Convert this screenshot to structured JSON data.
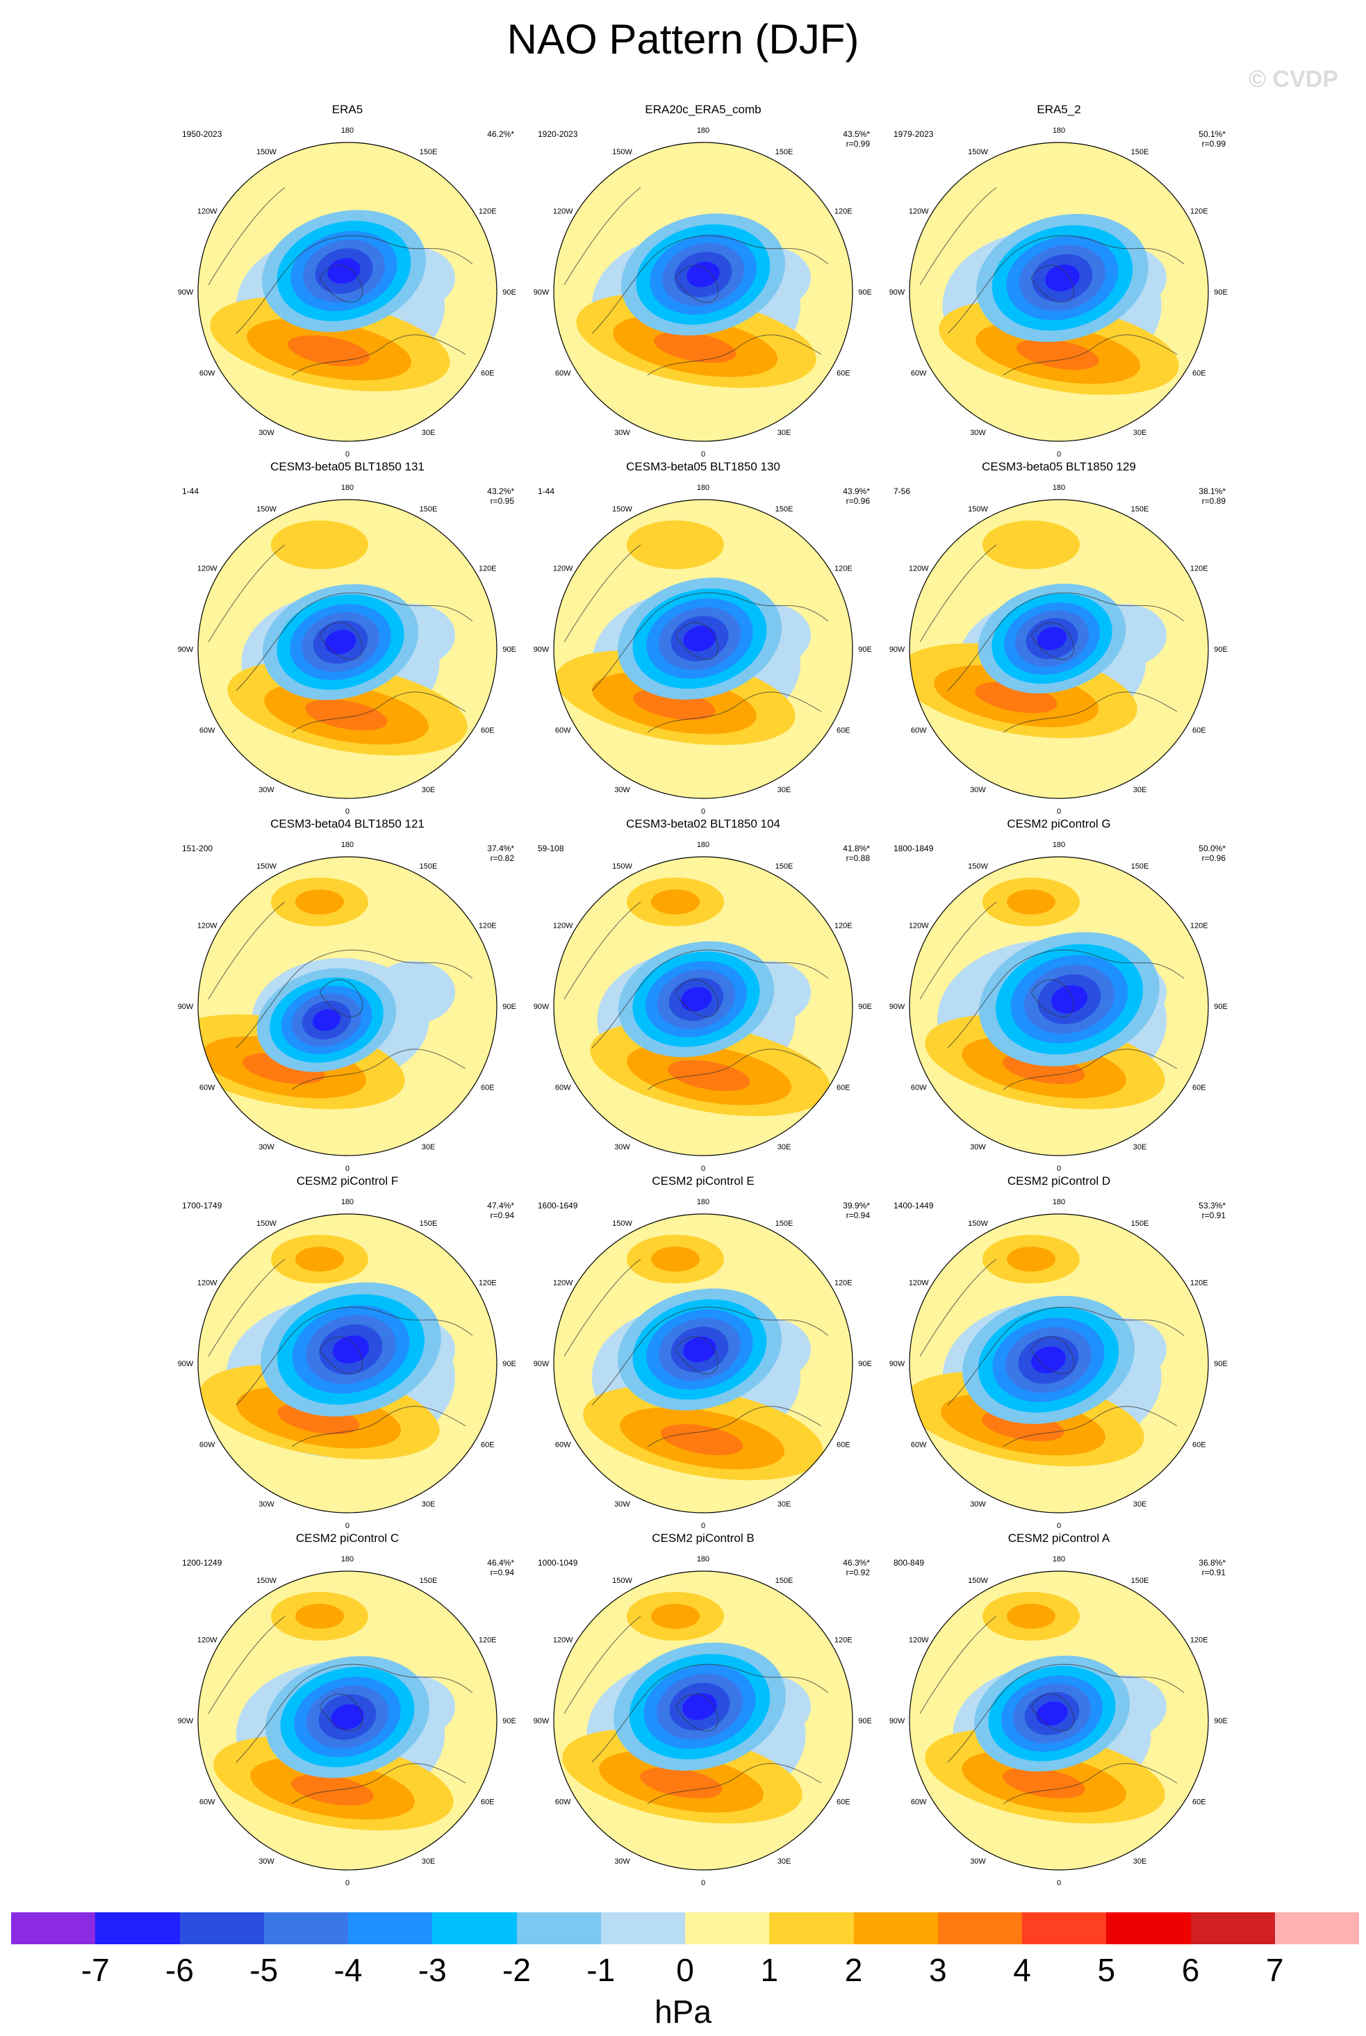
{
  "title": "NAO Pattern (DJF)",
  "watermark": "© CVDP",
  "lon_labels": [
    "180",
    "150E",
    "120E",
    "90E",
    "60E",
    "30E",
    "0",
    "30W",
    "60W",
    "90W",
    "120W",
    "150W"
  ],
  "colorbar": {
    "colors": [
      "#8a2be2",
      "#2020ff",
      "#2a4fe0",
      "#3a78e8",
      "#1e90ff",
      "#00bfff",
      "#7cc8f0",
      "#b8dcf4",
      "#fff59d",
      "#ffd230",
      "#ffa500",
      "#ff7a10",
      "#ff4020",
      "#ee0000",
      "#d02020",
      "#ffb0b0"
    ],
    "labels": [
      "-7",
      "-6",
      "-5",
      "-4",
      "-3",
      "-2",
      "-1",
      "0",
      "1",
      "2",
      "3",
      "4",
      "5",
      "6",
      "7"
    ],
    "units": "hPa"
  },
  "panels": [
    {
      "title": "ERA5",
      "range": "1950-2023",
      "pct": "46.2%*",
      "r": ""
    },
    {
      "title": "ERA20c_ERA5_comb",
      "range": "1920-2023",
      "pct": "43.5%*",
      "r": "r=0.99"
    },
    {
      "title": "ERA5_2",
      "range": "1979-2023",
      "pct": "50.1%*",
      "r": "r=0.99"
    },
    {
      "title": "CESM3-beta05 BLT1850 131",
      "range": "1-44",
      "pct": "43.2%*",
      "r": "r=0.95"
    },
    {
      "title": "CESM3-beta05 BLT1850 130",
      "range": "1-44",
      "pct": "43.9%*",
      "r": "r=0.96"
    },
    {
      "title": "CESM3-beta05 BLT1850 129",
      "range": "7-56",
      "pct": "38.1%*",
      "r": "r=0.89"
    },
    {
      "title": "CESM3-beta04 BLT1850 121",
      "range": "151-200",
      "pct": "37.4%*",
      "r": "r=0.82"
    },
    {
      "title": "CESM3-beta02 BLT1850 104",
      "range": "59-108",
      "pct": "41.8%*",
      "r": "r=0.88"
    },
    {
      "title": "CESM2 piControl G",
      "range": "1800-1849",
      "pct": "50.0%*",
      "r": "r=0.96"
    },
    {
      "title": "CESM2 piControl F",
      "range": "1700-1749",
      "pct": "47.4%*",
      "r": "r=0.94"
    },
    {
      "title": "CESM2 piControl E",
      "range": "1600-1649",
      "pct": "39.9%*",
      "r": "r=0.94"
    },
    {
      "title": "CESM2 piControl D",
      "range": "1400-1449",
      "pct": "53.3%*",
      "r": "r=0.91"
    },
    {
      "title": "CESM2 piControl C",
      "range": "1200-1249",
      "pct": "46.4%*",
      "r": "r=0.94"
    },
    {
      "title": "CESM2 piControl B",
      "range": "1000-1049",
      "pct": "46.3%*",
      "r": "r=0.92"
    },
    {
      "title": "CESM2 piControl A",
      "range": "800-849",
      "pct": "36.8%*",
      "r": "r=0.91"
    }
  ]
}
